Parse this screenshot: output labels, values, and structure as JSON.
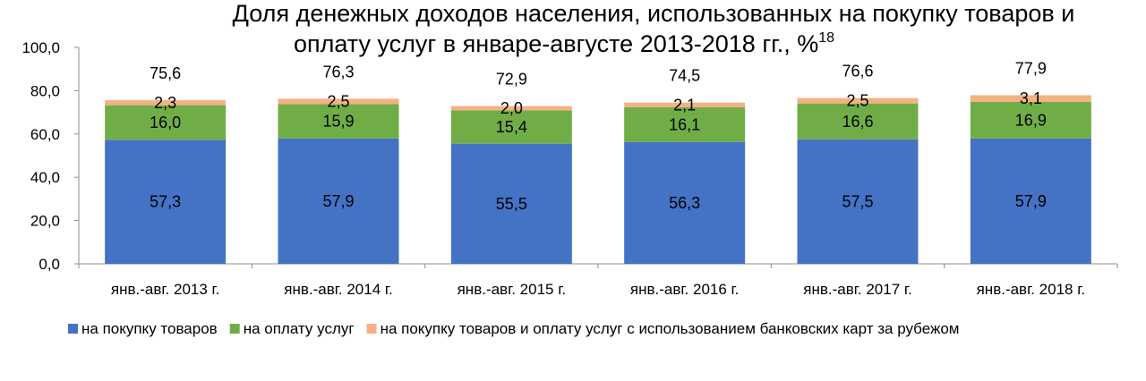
{
  "chart_data": {
    "type": "bar",
    "stacked": true,
    "title": "Доля денежных доходов населения, использованных на покупку товаров и оплату услуг в январе-августе 2013-2018 гг., %",
    "title_line1": "Доля денежных доходов населения, использованных на покупку товаров и",
    "title_line2": "оплату услуг в январе-августе 2013-2018 гг., %",
    "title_footnote": "18",
    "xlabel": "",
    "ylabel": "",
    "ylim": [
      0,
      100
    ],
    "yticks": [
      0,
      20,
      40,
      60,
      80,
      100
    ],
    "ytick_labels": [
      "0,0",
      "20,0",
      "40,0",
      "60,0",
      "80,0",
      "100,0"
    ],
    "grid": false,
    "legend_position": "bottom",
    "categories": [
      "янв.-авг. 2013 г.",
      "янв.-авг. 2014 г.",
      "янв.-авг. 2015 г.",
      "янв.-авг. 2016 г.",
      "янв.-авг. 2017 г.",
      "янв.-авг. 2018 г."
    ],
    "series": [
      {
        "name": "на покупку товаров",
        "color": "#4472C4",
        "values": [
          57.3,
          57.9,
          55.5,
          56.3,
          57.5,
          57.9
        ],
        "labels": [
          "57,3",
          "57,9",
          "55,5",
          "56,3",
          "57,5",
          "57,9"
        ]
      },
      {
        "name": "на оплату услуг",
        "color": "#70AD47",
        "values": [
          16.0,
          15.9,
          15.4,
          16.1,
          16.6,
          16.9
        ],
        "labels": [
          "16,0",
          "15,9",
          "15,4",
          "16,1",
          "16,6",
          "16,9"
        ]
      },
      {
        "name": "на покупку товаров и оплату услуг с использованием банковских карт за рубежом",
        "color": "#F4B183",
        "values": [
          2.3,
          2.5,
          2.0,
          2.1,
          2.5,
          3.1
        ],
        "labels": [
          "2,3",
          "2,5",
          "2,0",
          "2,1",
          "2,5",
          "3,1"
        ]
      }
    ],
    "totals": [
      75.6,
      76.3,
      72.9,
      74.5,
      76.6,
      77.9
    ],
    "total_labels": [
      "75,6",
      "76,3",
      "72,9",
      "74,5",
      "76,6",
      "77,9"
    ]
  }
}
